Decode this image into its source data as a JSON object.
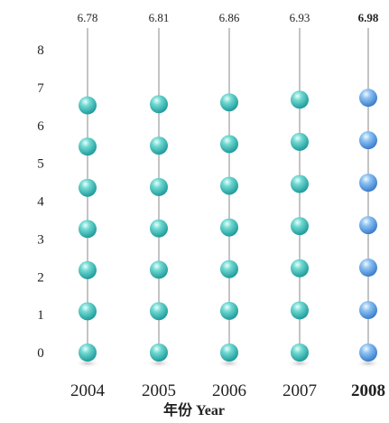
{
  "chart_data": {
    "type": "bar",
    "categories": [
      "2004",
      "2005",
      "2006",
      "2007",
      "2008"
    ],
    "values": [
      6.78,
      6.81,
      6.86,
      6.93,
      6.98
    ],
    "value_labels": [
      "6.78",
      "6.81",
      "6.86",
      "6.93",
      "6.98"
    ],
    "highlight_index": 4,
    "xlabel": "年份 Year",
    "ylabel": "",
    "ylim": [
      0,
      8
    ],
    "yticks": [
      "0",
      "1",
      "2",
      "3",
      "4",
      "5",
      "6",
      "7",
      "8"
    ],
    "grid": false,
    "colors": {
      "normal": "#2bb3b3",
      "normal_light": "#bff2ee",
      "highlight": "#4a90d9",
      "highlight_light": "#d6ecff",
      "stem": "#8a8a8a",
      "text": "#222222"
    }
  }
}
